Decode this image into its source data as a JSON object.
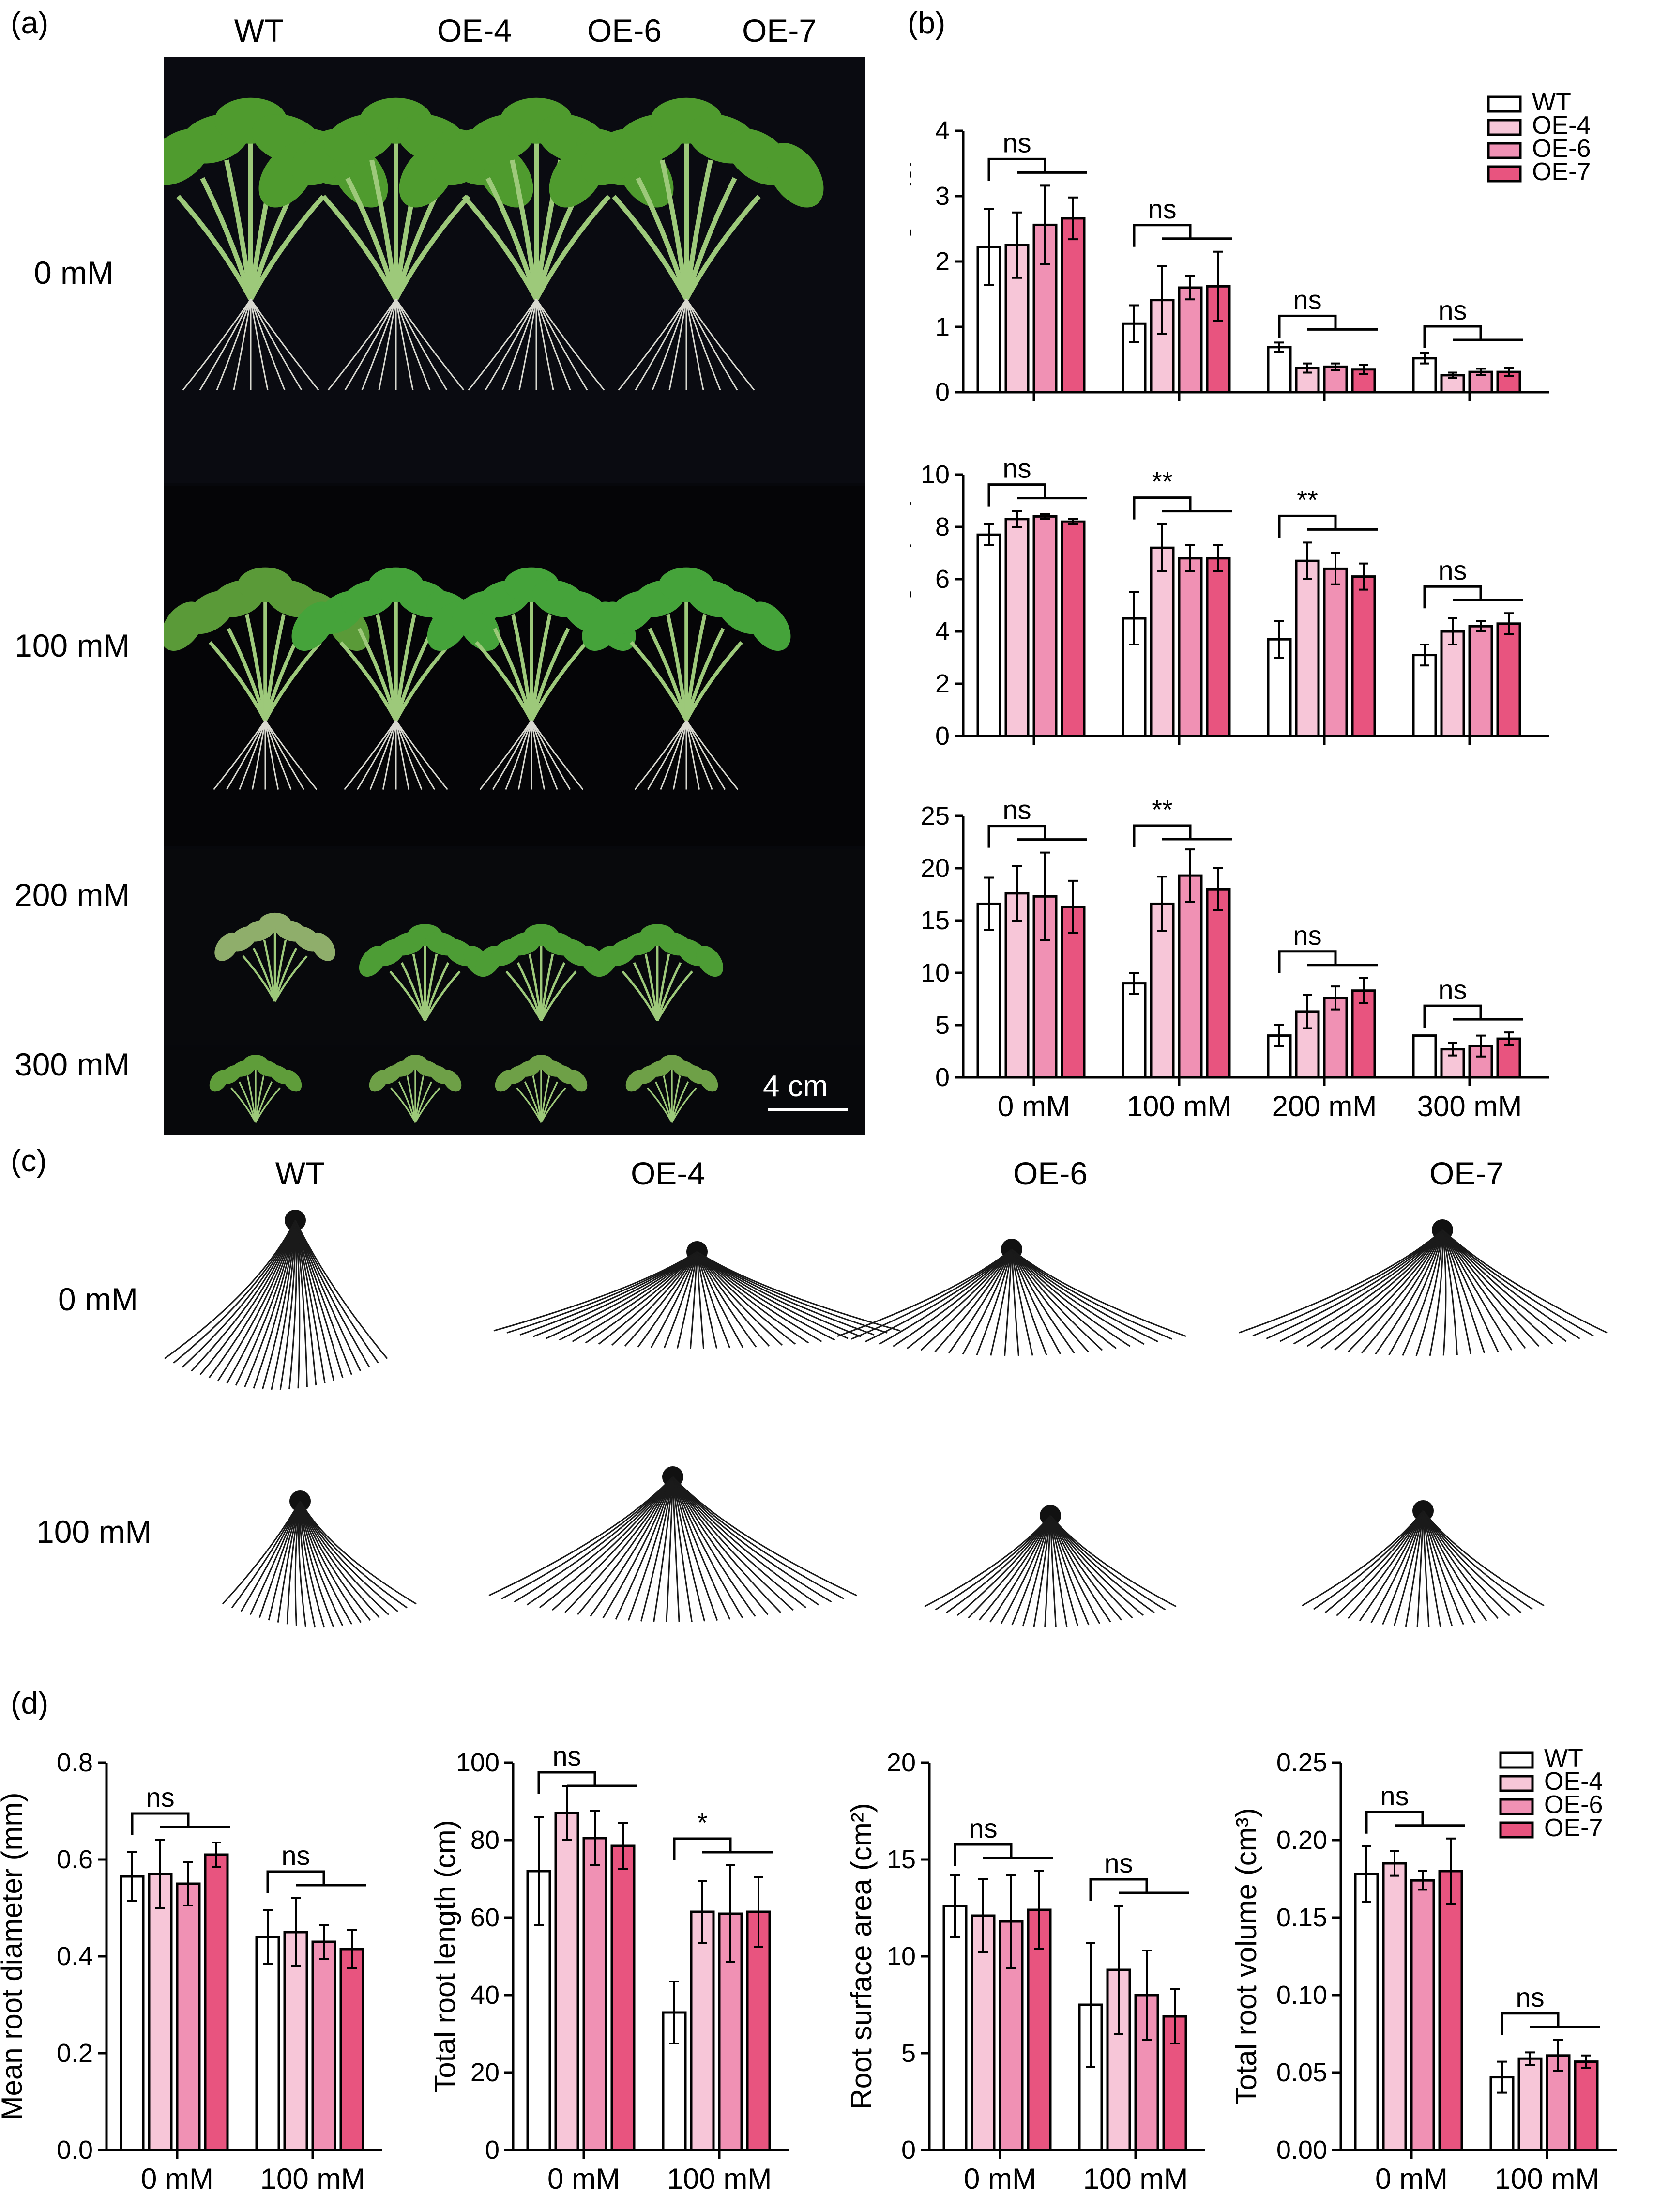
{
  "panel_labels": {
    "a": "(a)",
    "b": "(b)",
    "c": "(c)",
    "d": "(d)"
  },
  "genotypes": [
    "WT",
    "OE-4",
    "OE-6",
    "OE-7"
  ],
  "colors": {
    "WT": "#ffffff",
    "OE-4": "#f7c6d8",
    "OE-6": "#f091b4",
    "OE-7": "#e8547f"
  },
  "panel_a": {
    "column_headers": [
      "WT",
      "OE-4",
      "OE-6",
      "OE-7"
    ],
    "row_labels": [
      "0 mM",
      "100 mM",
      "200 mM",
      "300 mM"
    ],
    "scale_bar": "4 cm"
  },
  "panel_c": {
    "column_headers": [
      "WT",
      "OE-4",
      "OE-6",
      "OE-7"
    ],
    "row_labels": [
      "0 mM",
      "100 mM"
    ]
  },
  "chart_data": [
    {
      "id": "fresh-weight",
      "type": "bar",
      "categories": [
        "0 mM",
        "100 mM",
        "200 mM",
        "300 mM"
      ],
      "ylabel": "Fresh weight (g)",
      "ylim": [
        0,
        4
      ],
      "yticks": [
        "0",
        "1",
        "2",
        "3",
        "4"
      ],
      "series": [
        {
          "name": "WT",
          "values": [
            2.22,
            1.05,
            0.69,
            0.52
          ],
          "errors": [
            0.58,
            0.28,
            0.07,
            0.08
          ]
        },
        {
          "name": "OE-4",
          "values": [
            2.25,
            1.41,
            0.37,
            0.26
          ],
          "errors": [
            0.5,
            0.52,
            0.07,
            0.04
          ]
        },
        {
          "name": "OE-6",
          "values": [
            2.56,
            1.6,
            0.39,
            0.31
          ],
          "errors": [
            0.6,
            0.18,
            0.05,
            0.05
          ]
        },
        {
          "name": "OE-7",
          "values": [
            2.66,
            1.62,
            0.35,
            0.31
          ],
          "errors": [
            0.32,
            0.53,
            0.07,
            0.06
          ]
        }
      ],
      "annotations": [
        "ns",
        "ns",
        "ns",
        "ns"
      ],
      "legend": [
        "WT",
        "OE-4",
        "OE-6",
        "OE-7"
      ]
    },
    {
      "id": "plant-height",
      "type": "bar",
      "categories": [
        "0 mM",
        "100 mM",
        "200 mM",
        "300 mM"
      ],
      "ylabel": "Plant height (cm)",
      "ylim": [
        0,
        10
      ],
      "yticks": [
        "0",
        "2",
        "4",
        "6",
        "8",
        "10"
      ],
      "series": [
        {
          "name": "WT",
          "values": [
            7.7,
            4.5,
            3.7,
            3.1
          ],
          "errors": [
            0.4,
            1.0,
            0.7,
            0.4
          ]
        },
        {
          "name": "OE-4",
          "values": [
            8.3,
            7.2,
            6.7,
            4.0
          ],
          "errors": [
            0.3,
            0.9,
            0.7,
            0.5
          ]
        },
        {
          "name": "OE-6",
          "values": [
            8.4,
            6.8,
            6.4,
            4.2
          ],
          "errors": [
            0.1,
            0.5,
            0.6,
            0.2
          ]
        },
        {
          "name": "OE-7",
          "values": [
            8.2,
            6.8,
            6.1,
            4.3
          ],
          "errors": [
            0.1,
            0.5,
            0.5,
            0.4
          ]
        }
      ],
      "annotations": [
        "ns",
        "**",
        "**",
        "ns"
      ]
    },
    {
      "id": "number-of-blades",
      "type": "bar",
      "categories": [
        "0 mM",
        "100 mM",
        "200 mM",
        "300 mM"
      ],
      "ylabel": "Number of blades",
      "ylim": [
        0,
        25
      ],
      "yticks": [
        "0",
        "5",
        "10",
        "15",
        "20",
        "25"
      ],
      "series": [
        {
          "name": "WT",
          "values": [
            16.6,
            9.0,
            4.0,
            4.0
          ],
          "errors": [
            2.5,
            1.0,
            1.0,
            0
          ]
        },
        {
          "name": "OE-4",
          "values": [
            17.6,
            16.6,
            6.3,
            2.7
          ],
          "errors": [
            2.6,
            2.6,
            1.6,
            0.6
          ]
        },
        {
          "name": "OE-6",
          "values": [
            17.3,
            19.3,
            7.6,
            3.0
          ],
          "errors": [
            4.2,
            2.5,
            1.1,
            1.0
          ]
        },
        {
          "name": "OE-7",
          "values": [
            16.3,
            18.0,
            8.3,
            3.7
          ],
          "errors": [
            2.5,
            2.0,
            1.2,
            0.6
          ]
        }
      ],
      "annotations": [
        "ns",
        "**",
        "ns",
        "ns"
      ]
    },
    {
      "id": "mean-root-diameter",
      "type": "bar",
      "categories": [
        "0 mM",
        "100 mM"
      ],
      "ylabel": "Mean root diameter (mm)",
      "ylim": [
        0,
        0.8
      ],
      "yticks": [
        "0.0",
        "0.2",
        "0.4",
        "0.6",
        "0.8"
      ],
      "series": [
        {
          "name": "WT",
          "values": [
            0.565,
            0.44
          ],
          "errors": [
            0.05,
            0.055
          ]
        },
        {
          "name": "OE-4",
          "values": [
            0.57,
            0.45
          ],
          "errors": [
            0.07,
            0.07
          ]
        },
        {
          "name": "OE-6",
          "values": [
            0.55,
            0.43
          ],
          "errors": [
            0.045,
            0.035
          ]
        },
        {
          "name": "OE-7",
          "values": [
            0.61,
            0.415
          ],
          "errors": [
            0.025,
            0.04
          ]
        }
      ],
      "annotations": [
        "ns",
        "ns"
      ]
    },
    {
      "id": "total-root-length",
      "type": "bar",
      "categories": [
        "0 mM",
        "100 mM"
      ],
      "ylabel": "Total root length (cm)",
      "ylim": [
        0,
        100
      ],
      "yticks": [
        "0",
        "20",
        "40",
        "60",
        "80",
        "100"
      ],
      "series": [
        {
          "name": "WT",
          "values": [
            72,
            35.5
          ],
          "errors": [
            14,
            8
          ]
        },
        {
          "name": "OE-4",
          "values": [
            87,
            61.5
          ],
          "errors": [
            7,
            8
          ]
        },
        {
          "name": "OE-6",
          "values": [
            80.5,
            61
          ],
          "errors": [
            7,
            12.5
          ]
        },
        {
          "name": "OE-7",
          "values": [
            78.5,
            61.5
          ],
          "errors": [
            6,
            9
          ]
        }
      ],
      "annotations": [
        "ns",
        "*"
      ]
    },
    {
      "id": "root-surface-area",
      "type": "bar",
      "categories": [
        "0 mM",
        "100 mM"
      ],
      "ylabel": "Root surface area (cm²)",
      "ylim": [
        0,
        20
      ],
      "yticks": [
        "0",
        "5",
        "10",
        "15",
        "20"
      ],
      "series": [
        {
          "name": "WT",
          "values": [
            12.6,
            7.5
          ],
          "errors": [
            1.6,
            3.2
          ]
        },
        {
          "name": "OE-4",
          "values": [
            12.1,
            9.3
          ],
          "errors": [
            1.9,
            3.3
          ]
        },
        {
          "name": "OE-6",
          "values": [
            11.8,
            8.0
          ],
          "errors": [
            2.4,
            2.3
          ]
        },
        {
          "name": "OE-7",
          "values": [
            12.4,
            6.9
          ],
          "errors": [
            2.0,
            1.4
          ]
        }
      ],
      "annotations": [
        "ns",
        "ns"
      ]
    },
    {
      "id": "total-root-volume",
      "type": "bar",
      "categories": [
        "0 mM",
        "100 mM"
      ],
      "ylabel": "Total root volume (cm³)",
      "ylim": [
        0,
        0.25
      ],
      "yticks": [
        "0.00",
        "0.05",
        "0.10",
        "0.15",
        "0.20",
        "0.25"
      ],
      "series": [
        {
          "name": "WT",
          "values": [
            0.178,
            0.047
          ],
          "errors": [
            0.018,
            0.01
          ]
        },
        {
          "name": "OE-4",
          "values": [
            0.185,
            0.059
          ],
          "errors": [
            0.008,
            0.004
          ]
        },
        {
          "name": "OE-6",
          "values": [
            0.174,
            0.061
          ],
          "errors": [
            0.006,
            0.01
          ]
        },
        {
          "name": "OE-7",
          "values": [
            0.18,
            0.057
          ],
          "errors": [
            0.021,
            0.004
          ]
        }
      ],
      "annotations": [
        "ns",
        "ns"
      ],
      "legend": [
        "WT",
        "OE-4",
        "OE-6",
        "OE-7"
      ]
    }
  ]
}
